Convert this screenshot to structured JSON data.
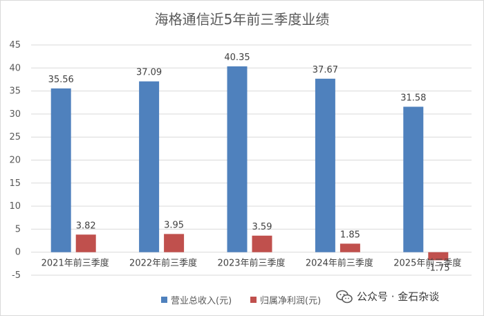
{
  "chart_data": {
    "type": "bar",
    "title": "海格通信近5年前三季度业绩",
    "categories": [
      "2021年前三季度",
      "2022年前三季度",
      "2023年前三季度",
      "2024年前三季度",
      "2025年前三季度"
    ],
    "series": [
      {
        "name": "营业总收入(元)",
        "values": [
          35.56,
          37.09,
          40.35,
          37.67,
          31.58
        ],
        "color": "#4f81bd"
      },
      {
        "name": "归属净利润(元)",
        "values": [
          3.82,
          3.95,
          3.59,
          1.85,
          -1.75
        ],
        "color": "#c0504d"
      }
    ],
    "data_labels": {
      "revenue": [
        "35.56",
        "37.09",
        "40.35",
        "37.67",
        "31.58"
      ],
      "profit": [
        "3.82",
        "3.95",
        "3.59",
        "1.85",
        "-1.75"
      ]
    },
    "ylim": [
      -5,
      45
    ],
    "yticks": [
      "45",
      "40",
      "35",
      "30",
      "25",
      "20",
      "15",
      "10",
      "5",
      "0",
      "-5"
    ],
    "grid": true,
    "legend_position": "bottom"
  },
  "watermark": {
    "text": "公众号 · 金石杂谈",
    "icon": "wechat-icon"
  }
}
